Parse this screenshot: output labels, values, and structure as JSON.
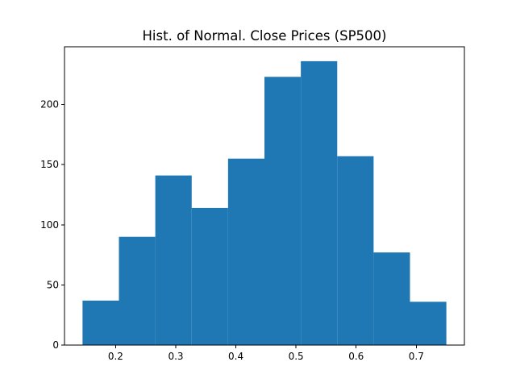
{
  "chart_data": {
    "type": "bar",
    "title": "Hist. of Normal. Close Prices (SP500)",
    "xlabel": "",
    "ylabel": "",
    "bin_edges": [
      0.145,
      0.2055,
      0.266,
      0.3265,
      0.387,
      0.4475,
      0.508,
      0.5685,
      0.629,
      0.6895,
      0.75
    ],
    "values": [
      37,
      90,
      141,
      114,
      155,
      223,
      236,
      157,
      77,
      36
    ],
    "xlim": [
      0.115,
      0.78
    ],
    "ylim": [
      0,
      248
    ],
    "x_ticks": [
      0.2,
      0.3,
      0.4,
      0.5,
      0.6,
      0.7
    ],
    "x_tick_labels": [
      "0.2",
      "0.3",
      "0.4",
      "0.5",
      "0.6",
      "0.7"
    ],
    "y_ticks": [
      0,
      50,
      100,
      150,
      200
    ],
    "y_tick_labels": [
      "0",
      "50",
      "100",
      "150",
      "200"
    ],
    "bar_color": "#1f77b4",
    "grid": false,
    "legend": "none"
  }
}
